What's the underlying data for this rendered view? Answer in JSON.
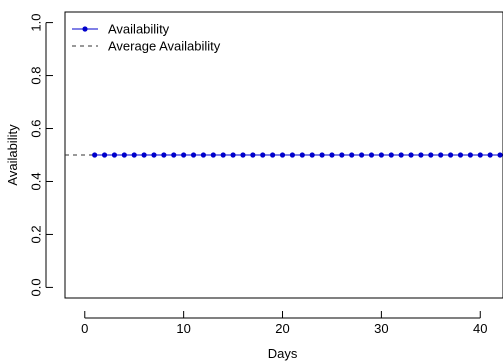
{
  "chart_data": {
    "type": "line",
    "xlabel": "Days",
    "ylabel": "Availability",
    "xlim": [
      -2,
      42.3
    ],
    "ylim": [
      -0.04,
      1.04
    ],
    "x_ticks": [
      0,
      10,
      20,
      30,
      40
    ],
    "y_ticks": [
      0.0,
      0.2,
      0.4,
      0.6,
      0.8,
      1.0
    ],
    "x_tick_labels": [
      "0",
      "10",
      "20",
      "30",
      "40"
    ],
    "y_tick_labels": [
      "0.0",
      "0.2",
      "0.4",
      "0.6",
      "0.8",
      "1.0"
    ],
    "grid": false,
    "legend_position": "top-left",
    "series": [
      {
        "name": "Availability",
        "style": "line-with-points",
        "color": "#0000cc",
        "x": [
          1,
          2,
          3,
          4,
          5,
          6,
          7,
          8,
          9,
          10,
          11,
          12,
          13,
          14,
          15,
          16,
          17,
          18,
          19,
          20,
          21,
          22,
          23,
          24,
          25,
          26,
          27,
          28,
          29,
          30,
          31,
          32,
          33,
          34,
          35,
          36,
          37,
          38,
          39,
          40,
          41,
          42
        ],
        "y": [
          0.5,
          0.5,
          0.5,
          0.5,
          0.5,
          0.5,
          0.5,
          0.5,
          0.5,
          0.5,
          0.5,
          0.5,
          0.5,
          0.5,
          0.5,
          0.5,
          0.5,
          0.5,
          0.5,
          0.5,
          0.5,
          0.5,
          0.5,
          0.5,
          0.5,
          0.5,
          0.5,
          0.5,
          0.5,
          0.5,
          0.5,
          0.5,
          0.5,
          0.5,
          0.5,
          0.5,
          0.5,
          0.5,
          0.5,
          0.5,
          0.5,
          0.5
        ]
      },
      {
        "name": "Average Availability",
        "style": "dashed-horizontal-line",
        "color": "#333333",
        "y": 0.5
      }
    ]
  }
}
